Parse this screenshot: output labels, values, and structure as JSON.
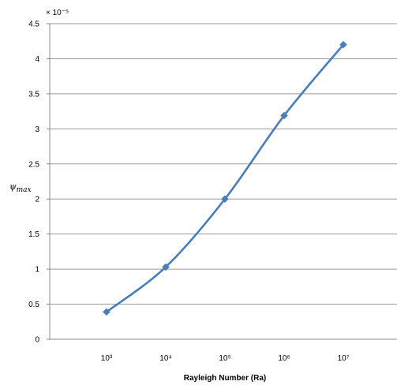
{
  "chart_data": {
    "type": "line",
    "title": "",
    "xlabel": "Rayleigh Number (Ra)",
    "ylabel": "ψmax",
    "ylabel_base": "ψ",
    "ylabel_sub": "max",
    "y_multiplier_label": "× 10⁻⁵",
    "x_scale": "log",
    "x_ticks": [
      {
        "value": 1000,
        "label": "10³"
      },
      {
        "value": 10000,
        "label": "10⁴"
      },
      {
        "value": 100000,
        "label": "10⁵"
      },
      {
        "value": 1000000,
        "label": "10⁶"
      },
      {
        "value": 10000000,
        "label": "10⁷"
      }
    ],
    "y_ticks": [
      {
        "value": 0,
        "label": "0"
      },
      {
        "value": 0.5,
        "label": "0.5"
      },
      {
        "value": 1,
        "label": "1"
      },
      {
        "value": 1.5,
        "label": "1.5"
      },
      {
        "value": 2,
        "label": "2"
      },
      {
        "value": 2.5,
        "label": "2.5"
      },
      {
        "value": 3,
        "label": "3"
      },
      {
        "value": 3.5,
        "label": "3.5"
      },
      {
        "value": 4,
        "label": "4"
      },
      {
        "value": 4.5,
        "label": "4.5"
      }
    ],
    "ylim": [
      0,
      4.5
    ],
    "grid": "horizontal",
    "legend": "none",
    "series": [
      {
        "color": "#4a7ebb",
        "marker": "diamond",
        "points": [
          {
            "x": 1000,
            "y": 0.39
          },
          {
            "x": 10000,
            "y": 1.03
          },
          {
            "x": 100000,
            "y": 2.0
          },
          {
            "x": 1000000,
            "y": 3.19
          },
          {
            "x": 10000000,
            "y": 4.2
          }
        ]
      }
    ]
  }
}
